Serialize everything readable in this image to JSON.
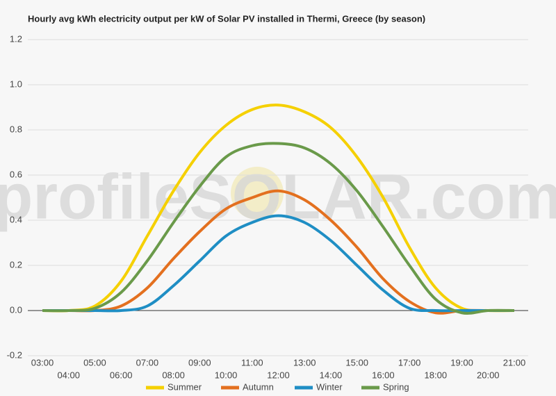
{
  "chart_data": {
    "type": "line",
    "title": "Hourly avg kWh electricity output per kW of Solar PV installed in Thermi, Greece (by season)",
    "watermark": "profileSOLAR.com",
    "categories": [
      "03:00",
      "04:00",
      "05:00",
      "06:00",
      "07:00",
      "08:00",
      "09:00",
      "10:00",
      "11:00",
      "12:00",
      "13:00",
      "14:00",
      "15:00",
      "16:00",
      "17:00",
      "18:00",
      "19:00",
      "20:00",
      "21:00"
    ],
    "series": [
      {
        "name": "Summer",
        "color": "#f5d000",
        "values": [
          0,
          0,
          0.02,
          0.13,
          0.33,
          0.53,
          0.7,
          0.82,
          0.89,
          0.91,
          0.88,
          0.81,
          0.68,
          0.5,
          0.28,
          0.1,
          0.01,
          0,
          0
        ]
      },
      {
        "name": "Autumn",
        "color": "#e3701f",
        "values": [
          0,
          0,
          0,
          0.02,
          0.1,
          0.23,
          0.35,
          0.45,
          0.5,
          0.53,
          0.49,
          0.4,
          0.28,
          0.14,
          0.04,
          -0.01,
          0,
          0,
          0
        ]
      },
      {
        "name": "Winter",
        "color": "#1f8ec4",
        "values": [
          0,
          0,
          0,
          0,
          0.02,
          0.11,
          0.22,
          0.33,
          0.39,
          0.42,
          0.39,
          0.31,
          0.2,
          0.09,
          0.01,
          0,
          0,
          0,
          0
        ]
      },
      {
        "name": "Spring",
        "color": "#6a9a4a",
        "values": [
          0,
          0,
          0.01,
          0.08,
          0.22,
          0.39,
          0.55,
          0.68,
          0.73,
          0.74,
          0.72,
          0.65,
          0.53,
          0.37,
          0.2,
          0.05,
          -0.01,
          0,
          0
        ]
      }
    ],
    "ylim": [
      -0.2,
      1.2
    ],
    "yticks": [
      -0.2,
      {
        "value": 0,
        "label": "0.0"
      },
      0.2,
      0.4,
      0.6,
      0.8,
      {
        "value": 1,
        "label": "1.0"
      },
      1.2
    ],
    "grid": true,
    "legend": "bottom"
  }
}
